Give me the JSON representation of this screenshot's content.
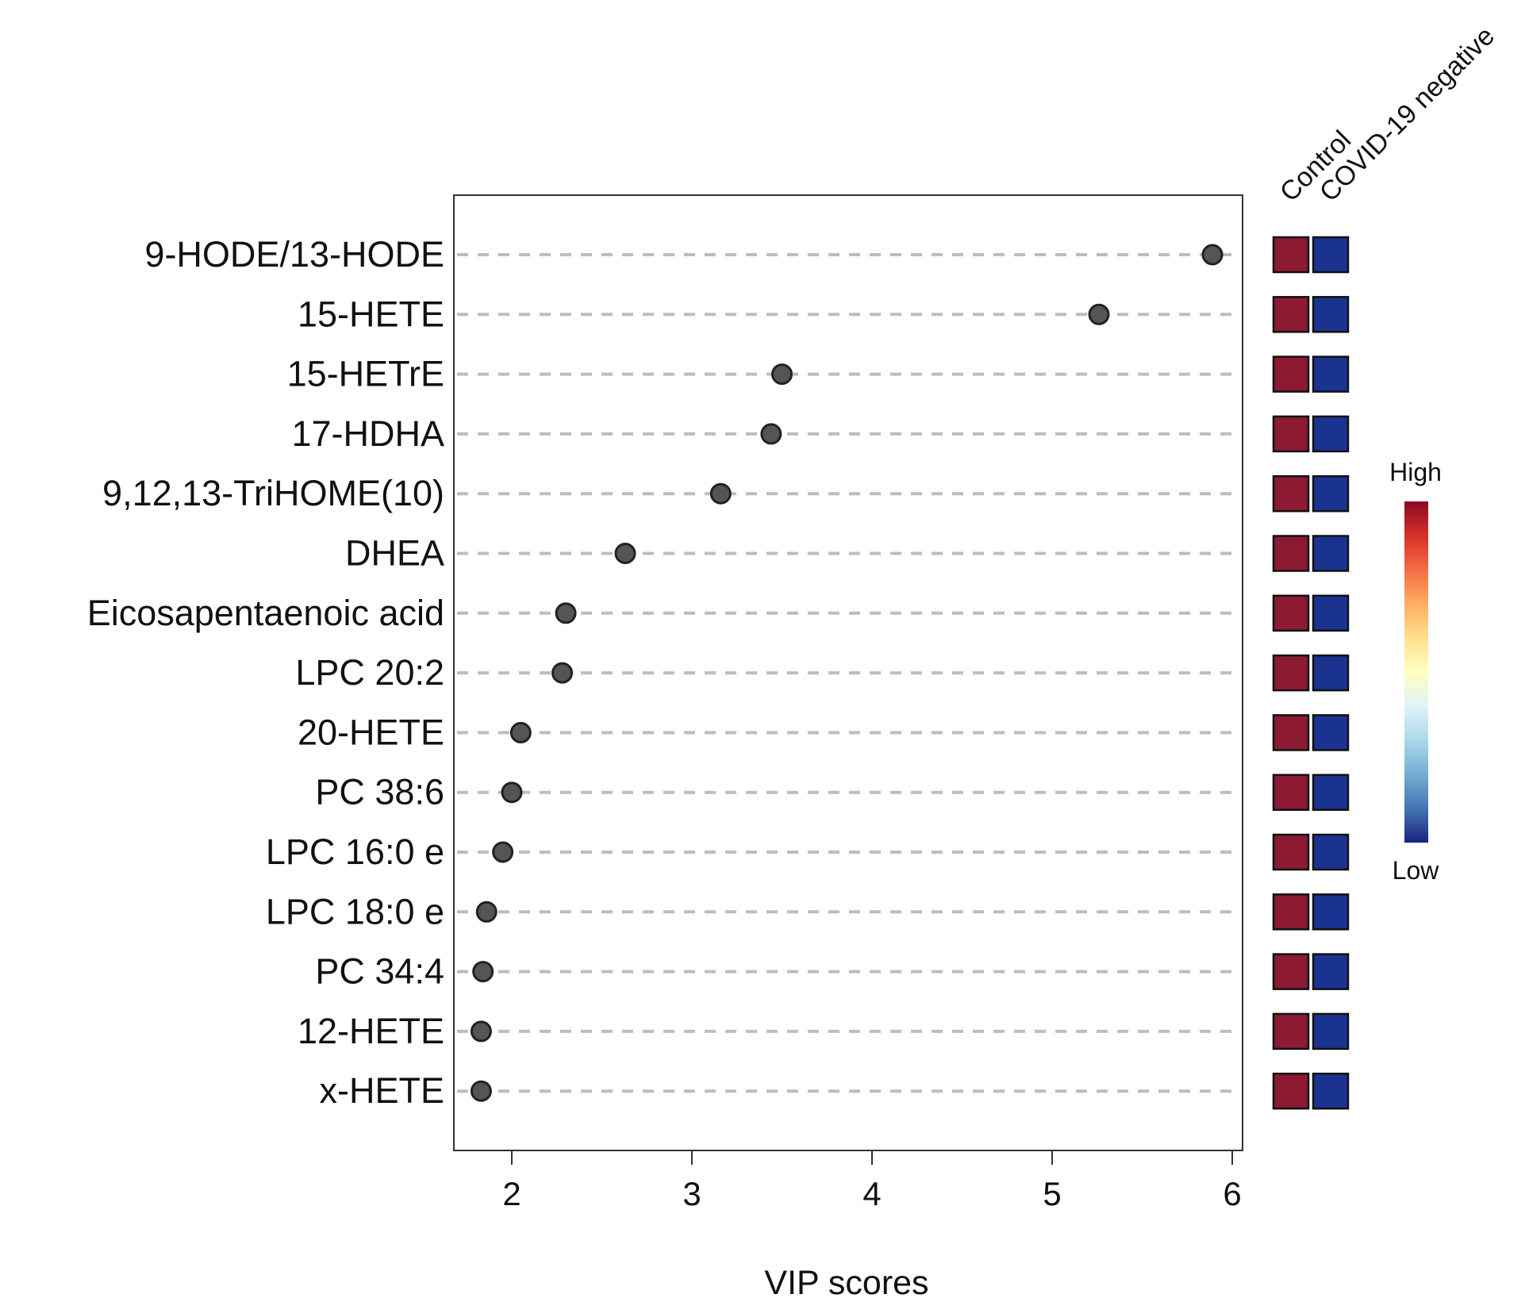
{
  "chart_data": {
    "type": "scatter",
    "xlabel": "VIP scores",
    "xlim": [
      1.67,
      6.05
    ],
    "xticks": [
      2,
      3,
      4,
      5,
      6
    ],
    "categories": [
      "9-HODE/13-HODE",
      "15-HETE",
      "15-HETrE",
      "17-HDHA",
      "9,12,13-TriHOME(10)",
      "DHEA",
      "Eicosapentaenoic acid",
      "LPC 20:2",
      "20-HETE",
      "PC 38:6",
      "LPC 16:0 e",
      "LPC 18:0 e",
      "PC 34:4",
      "12-HETE",
      "x-HETE"
    ],
    "values": [
      5.89,
      5.26,
      3.5,
      3.44,
      3.16,
      2.63,
      2.3,
      2.28,
      2.05,
      2.0,
      1.95,
      1.86,
      1.84,
      1.83,
      1.83
    ],
    "point_color": "#555555",
    "gridlines": "dashed horizontal",
    "heatmap": {
      "columns": [
        "Control",
        "COVID-19 negative"
      ],
      "cell_colors": [
        "#8b1a32",
        "#1a3391"
      ]
    },
    "colorbar": {
      "high_label": "High",
      "low_label": "Low",
      "colors": [
        "#8b0a26",
        "#d73027",
        "#f46d43",
        "#fdae61",
        "#fee090",
        "#ffffbf",
        "#e0f3f8",
        "#abd9e9",
        "#74add1",
        "#4575b4",
        "#1a237e"
      ]
    }
  }
}
